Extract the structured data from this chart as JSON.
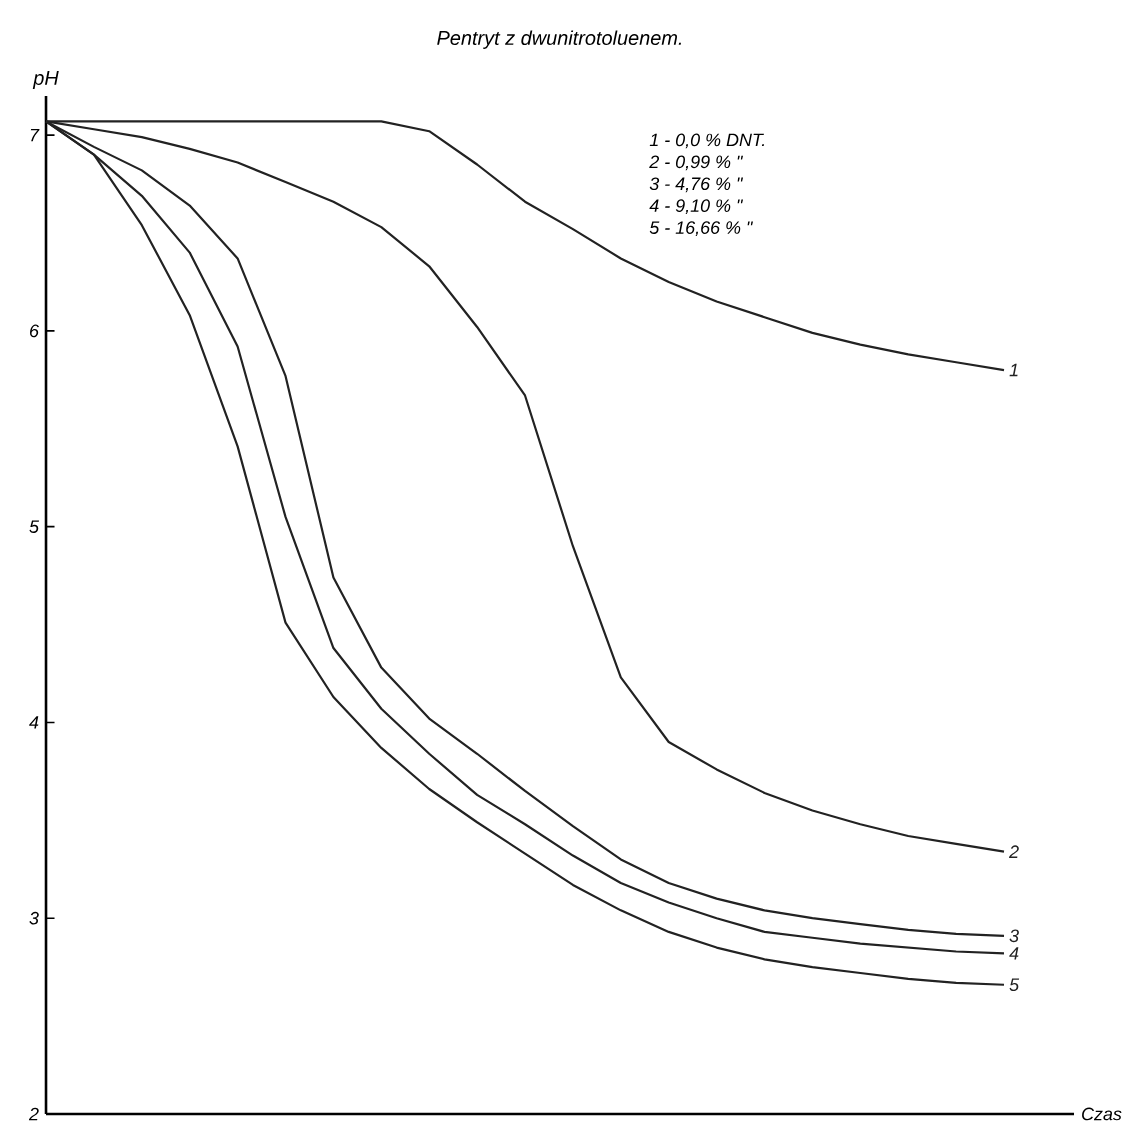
{
  "chart_data": {
    "type": "line",
    "title": "Pentryt z dwunitrotoluenem.",
    "xlabel": "Czas",
    "ylabel": "pH",
    "categories": [
      null,
      null,
      null,
      null,
      null,
      null,
      null,
      null,
      null,
      null,
      null,
      null,
      null,
      null,
      null,
      null,
      null,
      null,
      null,
      null,
      null
    ],
    "series": [
      {
        "name": "1",
        "color": "#222222",
        "values": [
          7.07,
          7.07,
          7.07,
          7.07,
          7.07,
          7.07,
          7.07,
          7.07,
          7.02,
          6.85,
          6.66,
          6.52,
          6.37,
          6.25,
          6.15,
          6.07,
          5.99,
          5.93,
          5.88,
          5.84,
          5.8
        ]
      },
      {
        "name": "2",
        "color": "#222222",
        "values": [
          7.07,
          7.03,
          6.99,
          6.93,
          6.86,
          6.76,
          6.66,
          6.53,
          6.33,
          6.02,
          5.67,
          4.9,
          4.23,
          3.9,
          3.76,
          3.64,
          3.55,
          3.48,
          3.42,
          3.38,
          3.34
        ]
      },
      {
        "name": "3",
        "color": "#222222",
        "values": [
          7.07,
          6.94,
          6.82,
          6.64,
          6.37,
          5.77,
          4.74,
          4.28,
          4.02,
          3.84,
          3.65,
          3.47,
          3.3,
          3.18,
          3.1,
          3.04,
          3.0,
          2.97,
          2.94,
          2.92,
          2.91
        ]
      },
      {
        "name": "4",
        "color": "#222222",
        "values": [
          7.07,
          6.9,
          6.69,
          6.4,
          5.92,
          5.05,
          4.38,
          4.07,
          3.84,
          3.63,
          3.48,
          3.32,
          3.18,
          3.08,
          3.0,
          2.93,
          2.9,
          2.87,
          2.85,
          2.83,
          2.82
        ]
      },
      {
        "name": "5",
        "color": "#222222",
        "values": [
          7.07,
          6.9,
          6.54,
          6.08,
          5.41,
          4.51,
          4.13,
          3.87,
          3.66,
          3.49,
          3.33,
          3.17,
          3.04,
          2.93,
          2.85,
          2.79,
          2.75,
          2.72,
          2.69,
          2.67,
          2.66
        ]
      }
    ],
    "ylim": [
      2,
      7.2
    ],
    "yticks": [
      2,
      3,
      4,
      5,
      6,
      7
    ],
    "tick_labels": "y",
    "grid": false,
    "legend": false,
    "marker": "none",
    "line_style": "solid",
    "annotations": [
      "1 - 0,0 % DNT.",
      "2 - 0,99 % \"",
      "3 - 4,76 % \"",
      "4 - 9,10 % \"",
      "5 - 16,66 % \""
    ]
  }
}
